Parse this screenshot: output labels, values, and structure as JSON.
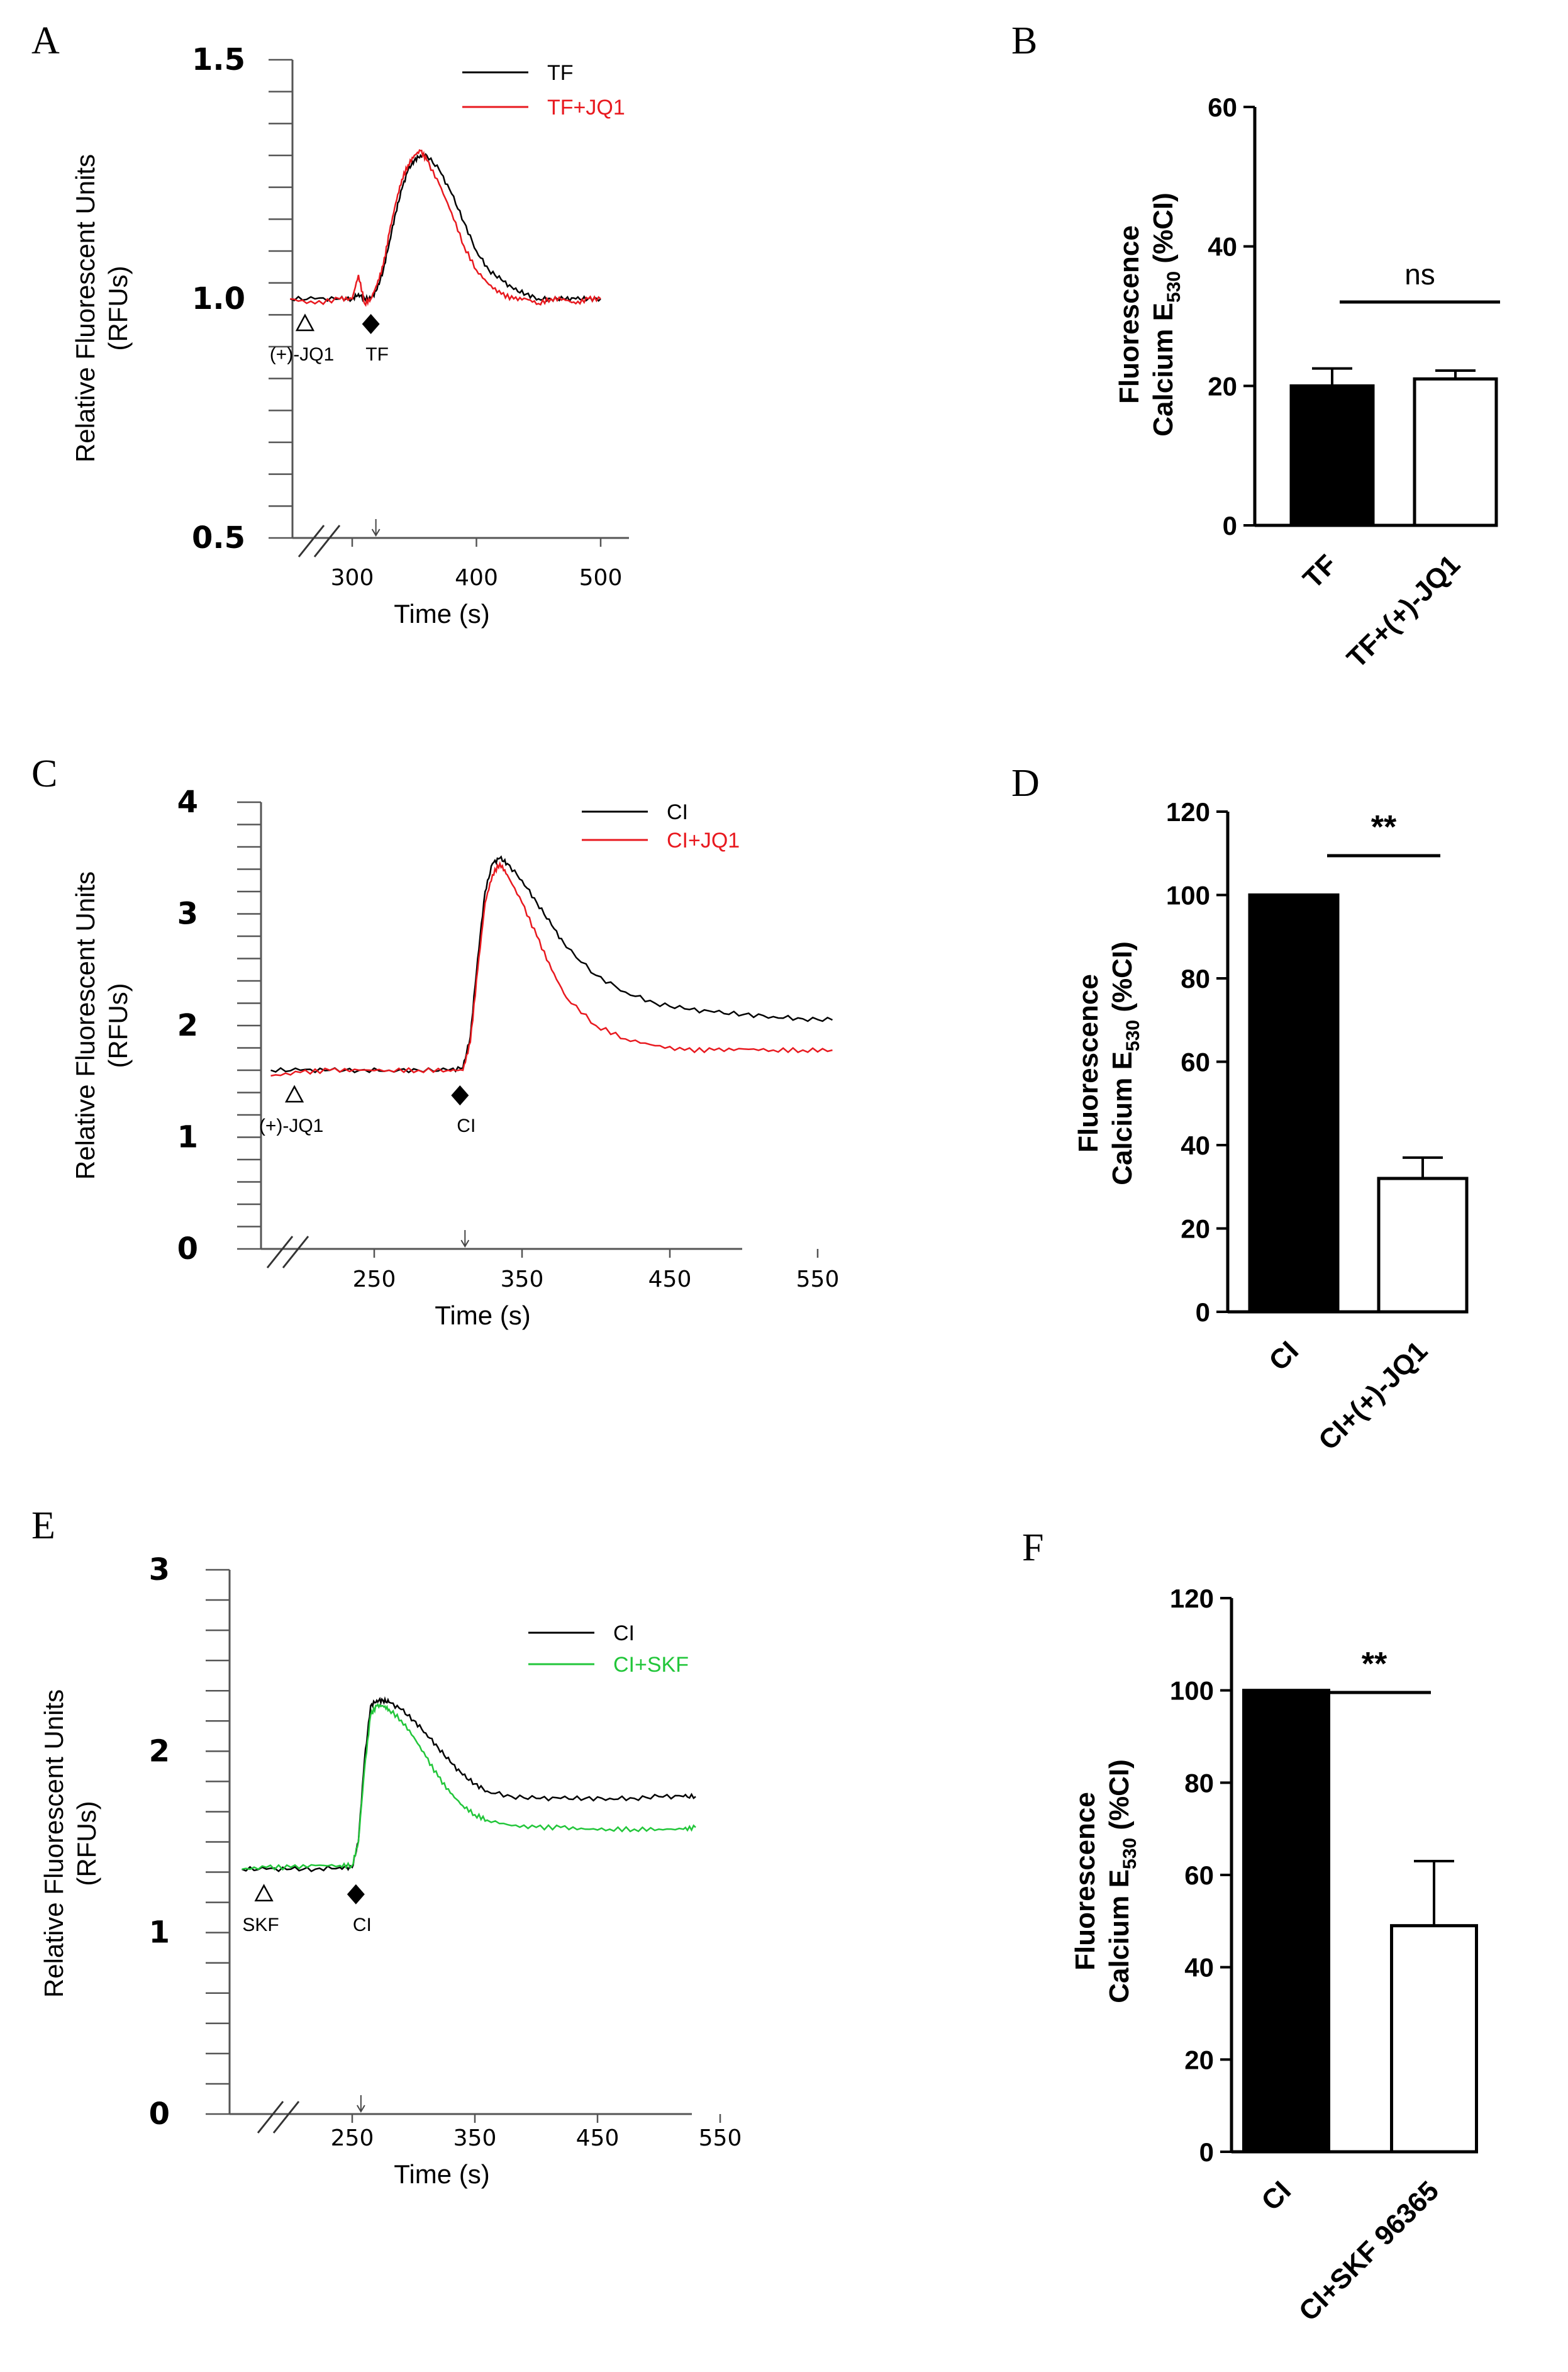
{
  "panels": {
    "A": "A",
    "B": "B",
    "C": "C",
    "D": "D",
    "E": "E",
    "F": "F"
  },
  "chart_data": [
    {
      "id": "A",
      "type": "line",
      "xlabel": "Time (s)",
      "ylabel_lines": [
        "Relative Fluorescent Units",
        "(RFUs)"
      ],
      "yticks": [
        "1.5",
        "1.0",
        "0.5"
      ],
      "ylim": [
        0.5,
        1.5
      ],
      "xticks": [
        "300",
        "400",
        "500"
      ],
      "xtick_values": [
        300,
        400,
        500
      ],
      "xlim": [
        240,
        520
      ],
      "series": [
        {
          "name": "TF",
          "color": "#000000",
          "x": [
            250,
            270,
            290,
            300,
            305,
            310,
            315,
            320,
            325,
            330,
            335,
            340,
            345,
            350,
            355,
            360,
            370,
            380,
            390,
            400,
            410,
            420,
            430,
            440,
            450,
            460,
            470,
            480,
            490,
            500
          ],
          "y": [
            1.0,
            1.0,
            1.0,
            1.0,
            1.01,
            1.0,
            1.0,
            1.02,
            1.06,
            1.12,
            1.18,
            1.23,
            1.27,
            1.29,
            1.3,
            1.3,
            1.27,
            1.22,
            1.16,
            1.1,
            1.06,
            1.04,
            1.02,
            1.01,
            1.0,
            1.0,
            1.0,
            1.0,
            1.0,
            1.0
          ]
        },
        {
          "name": "TF+JQ1",
          "color": "#e8191f",
          "x": [
            250,
            270,
            290,
            300,
            305,
            310,
            315,
            320,
            325,
            330,
            335,
            340,
            345,
            350,
            355,
            360,
            370,
            380,
            390,
            400,
            410,
            420,
            430,
            440,
            450,
            460,
            470,
            480,
            490,
            500
          ],
          "y": [
            1.0,
            0.99,
            1.0,
            1.0,
            1.05,
            0.99,
            1.0,
            1.03,
            1.07,
            1.14,
            1.2,
            1.25,
            1.28,
            1.3,
            1.31,
            1.29,
            1.24,
            1.18,
            1.11,
            1.06,
            1.03,
            1.01,
            1.0,
            1.0,
            0.99,
            1.0,
            1.0,
            0.99,
            1.0,
            1.0
          ]
        }
      ],
      "markers": [
        {
          "label": "(+)-JQ1",
          "symbol": "open-triangle",
          "x": 262
        },
        {
          "label": "TF",
          "symbol": "filled-diamond",
          "x": 315
        }
      ]
    },
    {
      "id": "B",
      "type": "bar",
      "ylabel_lines": [
        "Fluorescence",
        "Calcium E",
        "530",
        " (%CI)"
      ],
      "categories": [
        "TF",
        "TF+(+)-JQ1"
      ],
      "values": [
        20,
        21
      ],
      "errors": [
        2.5,
        1.2
      ],
      "fills": [
        "#000000",
        "#ffffff"
      ],
      "ylim": [
        0,
        60
      ],
      "yticks": [
        0,
        20,
        40,
        60
      ],
      "significance": "ns"
    },
    {
      "id": "C",
      "type": "line",
      "xlabel": "Time (s)",
      "ylabel_lines": [
        "Relative Fluorescent Units",
        "(RFUs)"
      ],
      "yticks": [
        "4",
        "3",
        "2",
        "1",
        "0"
      ],
      "ylim": [
        0,
        4
      ],
      "xticks": [
        "250",
        "350",
        "450",
        "550"
      ],
      "xtick_values": [
        250,
        350,
        450,
        550
      ],
      "xlim": [
        175,
        565
      ],
      "series": [
        {
          "name": "CI",
          "color": "#000000",
          "x": [
            180,
            200,
            220,
            240,
            260,
            280,
            300,
            310,
            315,
            320,
            325,
            330,
            335,
            340,
            350,
            360,
            370,
            380,
            400,
            420,
            440,
            460,
            480,
            500,
            520,
            540,
            560
          ],
          "y": [
            1.6,
            1.6,
            1.6,
            1.6,
            1.6,
            1.6,
            1.6,
            1.62,
            1.9,
            2.6,
            3.2,
            3.45,
            3.5,
            3.45,
            3.3,
            3.1,
            2.9,
            2.7,
            2.45,
            2.3,
            2.2,
            2.15,
            2.12,
            2.1,
            2.08,
            2.06,
            2.05
          ]
        },
        {
          "name": "CI+JQ1",
          "color": "#e8191f",
          "x": [
            180,
            200,
            220,
            240,
            260,
            280,
            300,
            310,
            315,
            320,
            325,
            330,
            335,
            340,
            350,
            360,
            370,
            380,
            400,
            420,
            440,
            460,
            480,
            500,
            520,
            540,
            560
          ],
          "y": [
            1.55,
            1.58,
            1.6,
            1.6,
            1.6,
            1.6,
            1.6,
            1.6,
            1.85,
            2.5,
            3.1,
            3.35,
            3.45,
            3.35,
            3.1,
            2.8,
            2.5,
            2.25,
            2.0,
            1.88,
            1.82,
            1.78,
            1.78,
            1.79,
            1.78,
            1.78,
            1.78
          ]
        }
      ],
      "markers": [
        {
          "label": "(+)-JQ1",
          "symbol": "open-triangle",
          "x": 196
        },
        {
          "label": "CI",
          "symbol": "filled-diamond",
          "x": 308
        }
      ]
    },
    {
      "id": "D",
      "type": "bar",
      "ylabel_lines": [
        "Fluorescence",
        "Calcium E",
        "530",
        " (%CI)"
      ],
      "categories": [
        "CI",
        "CI+(+)-JQ1"
      ],
      "values": [
        100,
        32
      ],
      "errors": [
        0,
        5
      ],
      "fills": [
        "#000000",
        "#ffffff"
      ],
      "ylim": [
        0,
        120
      ],
      "yticks": [
        0,
        20,
        40,
        60,
        80,
        100,
        120
      ],
      "significance": "**"
    },
    {
      "id": "E",
      "type": "line",
      "xlabel": "Time (s)",
      "ylabel_lines": [
        "Relative Fluorescent Units",
        "(RFUs)"
      ],
      "yticks": [
        "3",
        "2",
        "1",
        "0"
      ],
      "ylim": [
        0,
        3
      ],
      "xticks": [
        "250",
        "350",
        "450",
        "550"
      ],
      "xtick_values": [
        250,
        350,
        450,
        550
      ],
      "xlim": [
        155,
        540
      ],
      "series": [
        {
          "name": "CI",
          "color": "#000000",
          "x": [
            160,
            180,
            200,
            220,
            240,
            250,
            255,
            260,
            265,
            270,
            275,
            280,
            290,
            300,
            310,
            320,
            330,
            340,
            350,
            360,
            380,
            400,
            420,
            440,
            460,
            480,
            500,
            520,
            530
          ],
          "y": [
            1.35,
            1.35,
            1.35,
            1.35,
            1.36,
            1.36,
            1.5,
            1.95,
            2.25,
            2.28,
            2.28,
            2.27,
            2.23,
            2.17,
            2.1,
            2.02,
            1.94,
            1.87,
            1.82,
            1.78,
            1.75,
            1.74,
            1.74,
            1.74,
            1.74,
            1.74,
            1.75,
            1.75,
            1.75
          ]
        },
        {
          "name": "CI+SKF",
          "color": "#22c63a",
          "x": [
            160,
            180,
            200,
            220,
            240,
            250,
            255,
            260,
            265,
            270,
            275,
            280,
            290,
            300,
            310,
            320,
            330,
            340,
            350,
            360,
            380,
            400,
            420,
            440,
            460,
            480,
            500,
            520,
            530
          ],
          "y": [
            1.35,
            1.36,
            1.36,
            1.37,
            1.37,
            1.37,
            1.5,
            1.9,
            2.2,
            2.25,
            2.25,
            2.23,
            2.17,
            2.08,
            1.97,
            1.86,
            1.77,
            1.7,
            1.65,
            1.62,
            1.59,
            1.58,
            1.58,
            1.57,
            1.57,
            1.57,
            1.57,
            1.57,
            1.58
          ]
        }
      ],
      "markers": [
        {
          "label": "SKF",
          "symbol": "open-triangle",
          "x": 178
        },
        {
          "label": "CI",
          "symbol": "filled-diamond",
          "x": 253
        }
      ]
    },
    {
      "id": "F",
      "type": "bar",
      "ylabel_lines": [
        "Fluorescence",
        "Calcium E",
        "530",
        " (%CI)"
      ],
      "categories": [
        "CI",
        "CI+SKF 96365"
      ],
      "values": [
        100,
        49
      ],
      "errors": [
        0,
        14
      ],
      "fills": [
        "#000000",
        "#ffffff"
      ],
      "ylim": [
        0,
        120
      ],
      "yticks": [
        0,
        20,
        40,
        60,
        80,
        100,
        120
      ],
      "significance": "**"
    }
  ]
}
